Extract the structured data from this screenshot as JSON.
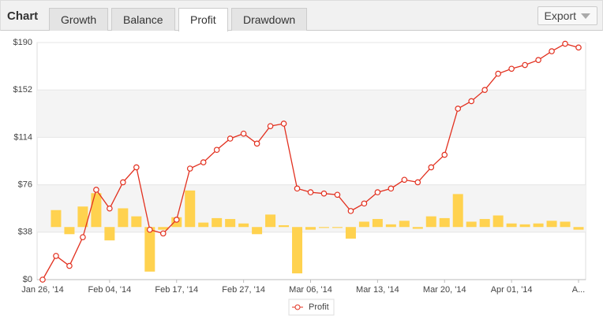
{
  "header": {
    "title": "Chart",
    "tabs": [
      "Growth",
      "Balance",
      "Profit",
      "Drawdown"
    ],
    "active_tab": "Profit",
    "export": "Export"
  },
  "chart_data": {
    "type": "line",
    "categories": [
      "Jan 26, '14",
      null,
      null,
      null,
      null,
      "Feb 04, '14",
      null,
      null,
      null,
      null,
      "Feb 17, '14",
      null,
      null,
      null,
      null,
      "Feb 27, '14",
      null,
      null,
      null,
      null,
      "Mar 06, '14",
      null,
      null,
      null,
      null,
      "Mar 13, '14",
      null,
      null,
      null,
      null,
      "Mar 20, '14",
      null,
      null,
      null,
      null,
      "Apr 01, '14",
      null,
      null,
      null,
      null,
      "A..."
    ],
    "series": [
      {
        "name": "Profit",
        "color": "#e2301f",
        "values": [
          0,
          19,
          11,
          34,
          72,
          57,
          78,
          90,
          40,
          37,
          48,
          89,
          94,
          104,
          113,
          117,
          109,
          123,
          125,
          73,
          70,
          69,
          68,
          55,
          61,
          70,
          73,
          80,
          78,
          90,
          100,
          137,
          143,
          152,
          165,
          169,
          172,
          176,
          183,
          189,
          186
        ]
      },
      {
        "type": "bar",
        "axis": "y2",
        "color": "#ffd24f",
        "values": [
          0,
          19,
          -8,
          23,
          38,
          -15,
          21,
          12,
          -50,
          -3,
          11,
          41,
          5,
          10,
          9,
          4,
          -8,
          14,
          2,
          -52,
          -3,
          -1,
          -1,
          -13,
          6,
          9,
          3,
          7,
          -2,
          12,
          10,
          37,
          6,
          9,
          13,
          4,
          3,
          4,
          7,
          6,
          -3
        ]
      }
    ],
    "ylim": [
      0,
      190
    ],
    "yticks": [
      {
        "value": 0,
        "label": "$0"
      },
      {
        "value": 38,
        "label": "$38"
      },
      {
        "value": 76,
        "label": "$76"
      },
      {
        "value": 114,
        "label": "$114"
      },
      {
        "value": 152,
        "label": "$152"
      },
      {
        "value": 190,
        "label": "$190"
      }
    ],
    "y2lim": [
      -59,
      207
    ],
    "grid": true,
    "band_color": "#f4f4f4",
    "legend": "bottom"
  }
}
